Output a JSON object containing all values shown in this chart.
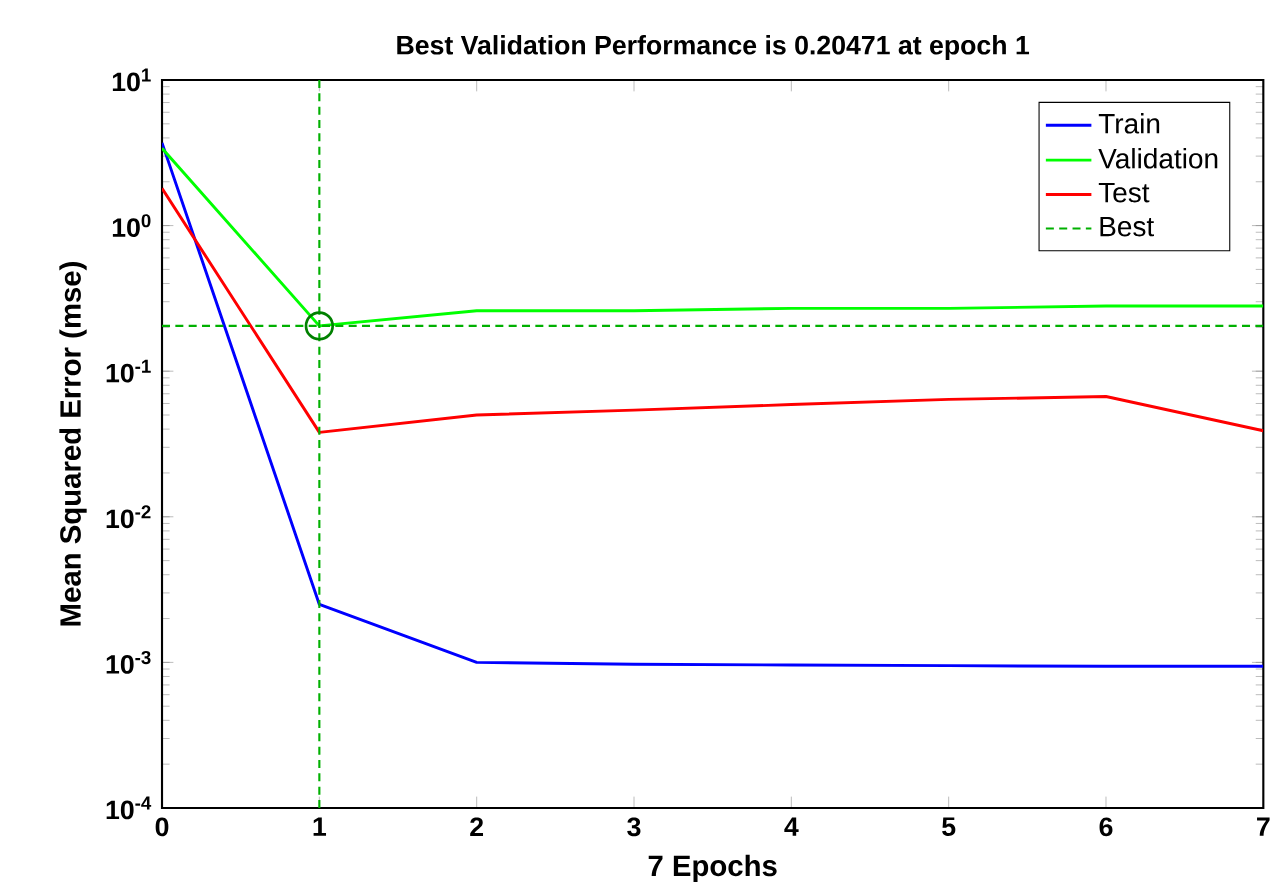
{
  "chart_data": {
    "type": "line",
    "title": "Best Validation Performance is 0.20471 at epoch 1",
    "xlabel": "7 Epochs",
    "ylabel": "Mean Squared Error  (mse)",
    "x": [
      0,
      1,
      2,
      3,
      4,
      5,
      6,
      7
    ],
    "series": [
      {
        "name": "Train",
        "color": "#0000ff",
        "values": [
          3.7,
          0.0025,
          0.001,
          0.00097,
          0.00096,
          0.00095,
          0.00094,
          0.00094
        ]
      },
      {
        "name": "Validation",
        "color": "#00ff00",
        "values": [
          3.4,
          0.20471,
          0.26,
          0.26,
          0.27,
          0.27,
          0.28,
          0.28
        ]
      },
      {
        "name": "Test",
        "color": "#ff0000",
        "values": [
          1.8,
          0.038,
          0.05,
          0.054,
          0.059,
          0.064,
          0.067,
          0.039
        ]
      },
      {
        "type": "scatter",
        "marker": "circle",
        "color": "#008000",
        "x": [
          1
        ],
        "values": [
          0.20471
        ]
      }
    ],
    "log": "y",
    "xlim": [
      0,
      7
    ],
    "ylim": [
      0.0001,
      10
    ],
    "xticks": [
      0,
      1,
      2,
      3,
      4,
      5,
      6,
      7
    ],
    "yticks": [
      {
        "value": 0.0001,
        "label": "10$^{-4}$"
      },
      {
        "value": 0.001,
        "label": "10$^{-3}$"
      },
      {
        "value": 0.01,
        "label": "10$^{-2}$"
      },
      {
        "value": 0.1,
        "label": "10$^{-1}$"
      },
      {
        "value": 1,
        "label": "10$^{0}$"
      },
      {
        "value": 10,
        "label": "10$^{1}$"
      }
    ],
    "ref_lines": [
      {
        "axis": "y",
        "value": 0.20471,
        "label": "Best",
        "color": "#00b000",
        "line_style": "dashed"
      },
      {
        "axis": "x",
        "value": 1,
        "color": "#00b000",
        "line_style": "dashed"
      }
    ],
    "legend": "top right",
    "grid": false
  }
}
